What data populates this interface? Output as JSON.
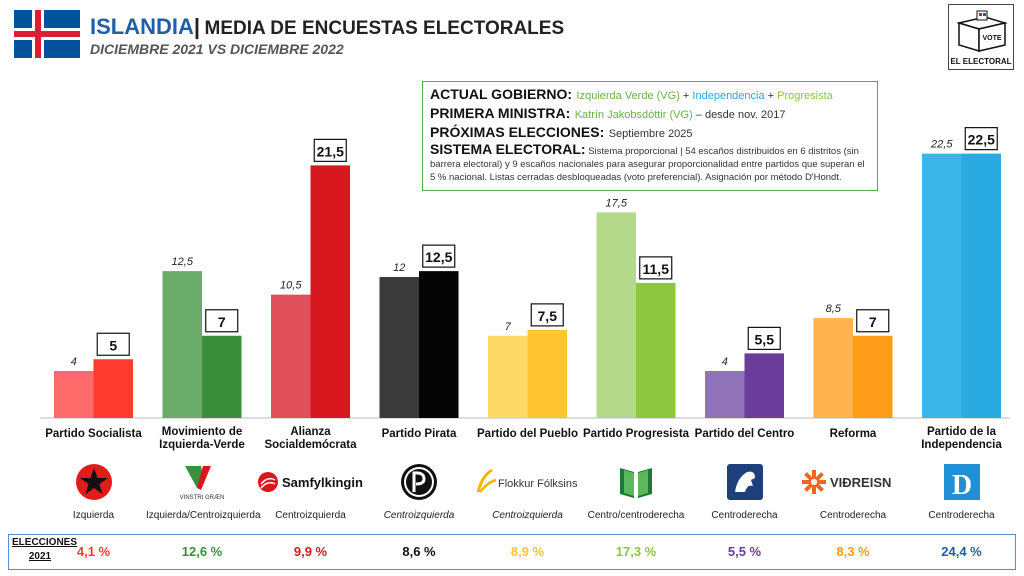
{
  "header": {
    "country": "ISLANDIA",
    "separator": "|",
    "title": "MEDIA DE ENCUESTAS ELECTORALES",
    "subtitle": "DICIEMBRE 2021 VS DICIEMBRE 2022"
  },
  "brand": {
    "logo_text": "EL ELECTORAL",
    "ballot_text": "VOTE"
  },
  "info": {
    "gov_key": "ACTUAL GOBIERNO:",
    "gov_p1": "Izquierda Verde (VG)",
    "plus1": " + ",
    "gov_p2": "Independencia",
    "plus2": " + ",
    "gov_p3": "Progresista",
    "pm_key": "PRIMERA MINISTRA:",
    "pm_name": "Katrín Jakobsdóttir (VG)",
    "pm_since": " – desde nov. 2017",
    "next_key": "PRÓXIMAS ELECCIONES:",
    "next_val": "Septiembre 2025",
    "sys_key": "SISTEMA ELECTORAL:",
    "sys_val": "Sistema proporcional | 54 escaños distribuidos en 6 distritos (sin barrera electoral) y 9 escaños nacionales para asegurar proporcionalidad entre partidos que superan el 5 % nacional. Listas cerradas desbloqueadas (voto preferencial). Asignación por método D'Hondt."
  },
  "chart_data": {
    "type": "bar",
    "categories": [
      "Partido Socialista",
      "Movimiento de Izquierda-Verde",
      "Alianza Socialdemócrata",
      "Partido Pirata",
      "Partido del Pueblo",
      "Partido Progresista",
      "Partido del Centro",
      "Reforma",
      "Partido de la Independencia"
    ],
    "series": [
      {
        "values": [
          4,
          12.5,
          10.5,
          12,
          7,
          17.5,
          4,
          8.5,
          22.5
        ],
        "labels": [
          "4",
          "12,5",
          "10,5",
          "12",
          "7",
          "17,5",
          "4",
          "8,5",
          "22,5"
        ]
      },
      {
        "values": [
          5,
          7,
          21.5,
          12.5,
          7.5,
          11.5,
          5.5,
          7,
          22.5
        ],
        "labels": [
          "5",
          "7",
          "21,5",
          "12,5",
          "7,5",
          "11,5",
          "5,5",
          "7",
          "22,5"
        ]
      }
    ],
    "colors_2021": [
      "#ff6b6b",
      "#6aab6a",
      "#e0505a",
      "#3a3a3a",
      "#ffd966",
      "#b4d98a",
      "#8f72b8",
      "#ffb24d",
      "#3ab6e6"
    ],
    "colors_2022": [
      "#ff3b30",
      "#3b8f3b",
      "#d7191f",
      "#050505",
      "#ffc533",
      "#8dc63f",
      "#6a3d9a",
      "#ff9c1a",
      "#29abe2"
    ],
    "ylim": [
      0,
      24
    ]
  },
  "parties": [
    {
      "label_lines": [
        "Partido Socialista"
      ],
      "logo_icon": "star-logo-icon",
      "logo_text": "",
      "ideology": "Izquierda",
      "italic": false
    },
    {
      "label_lines": [
        "Movimiento de",
        "Izquierda-Verde"
      ],
      "logo_icon": "vinstri-graen-logo-icon",
      "logo_text": "VINSTRI GRÆN",
      "ideology": "Izquierda/Centroizquierda",
      "italic": false
    },
    {
      "label_lines": [
        "Alianza",
        "Socialdemócrata"
      ],
      "logo_icon": "samfylkingin-logo-icon",
      "logo_text": "Samfylkingin",
      "ideology": "Centroizquierda",
      "italic": false
    },
    {
      "label_lines": [
        "Partido Pirata"
      ],
      "logo_icon": "pirate-flag-logo-icon",
      "logo_text": "",
      "ideology": "Centroizquierda",
      "italic": true
    },
    {
      "label_lines": [
        "Partido del Pueblo"
      ],
      "logo_icon": "flokkur-folksins-logo-icon",
      "logo_text": "Flokkur Fólksins",
      "ideology": "Centroizquierda",
      "italic": true
    },
    {
      "label_lines": [
        "Partido Progresista"
      ],
      "logo_icon": "progressive-book-logo-icon",
      "logo_text": "",
      "ideology": "Centro/centroderecha",
      "italic": false
    },
    {
      "label_lines": [
        "Partido del Centro"
      ],
      "logo_icon": "centre-horse-logo-icon",
      "logo_text": "",
      "ideology": "Centroderecha",
      "italic": false
    },
    {
      "label_lines": [
        "Reforma"
      ],
      "logo_icon": "vidreisn-logo-icon",
      "logo_text": "VIÐREISN",
      "ideology": "Centroderecha",
      "italic": false
    },
    {
      "label_lines": [
        "Partido de la",
        "Independencia"
      ],
      "logo_icon": "independence-d-logo-icon",
      "logo_text": "D",
      "ideology": "Centroderecha",
      "italic": false
    }
  ],
  "results": {
    "label_lines": [
      "ELECCIONES",
      "2021"
    ],
    "values": [
      "4,1 %",
      "12,6 %",
      "9,9 %",
      "8,6 %",
      "8,9 %",
      "17,3 %",
      "5,5 %",
      "8,3 %",
      "24,4 %"
    ],
    "colors": [
      "#ff3b30",
      "#3b8f3b",
      "#d7191f",
      "#111111",
      "#ffc533",
      "#8dc63f",
      "#6a3d9a",
      "#ff9c1a",
      "#1f5fa8"
    ]
  }
}
